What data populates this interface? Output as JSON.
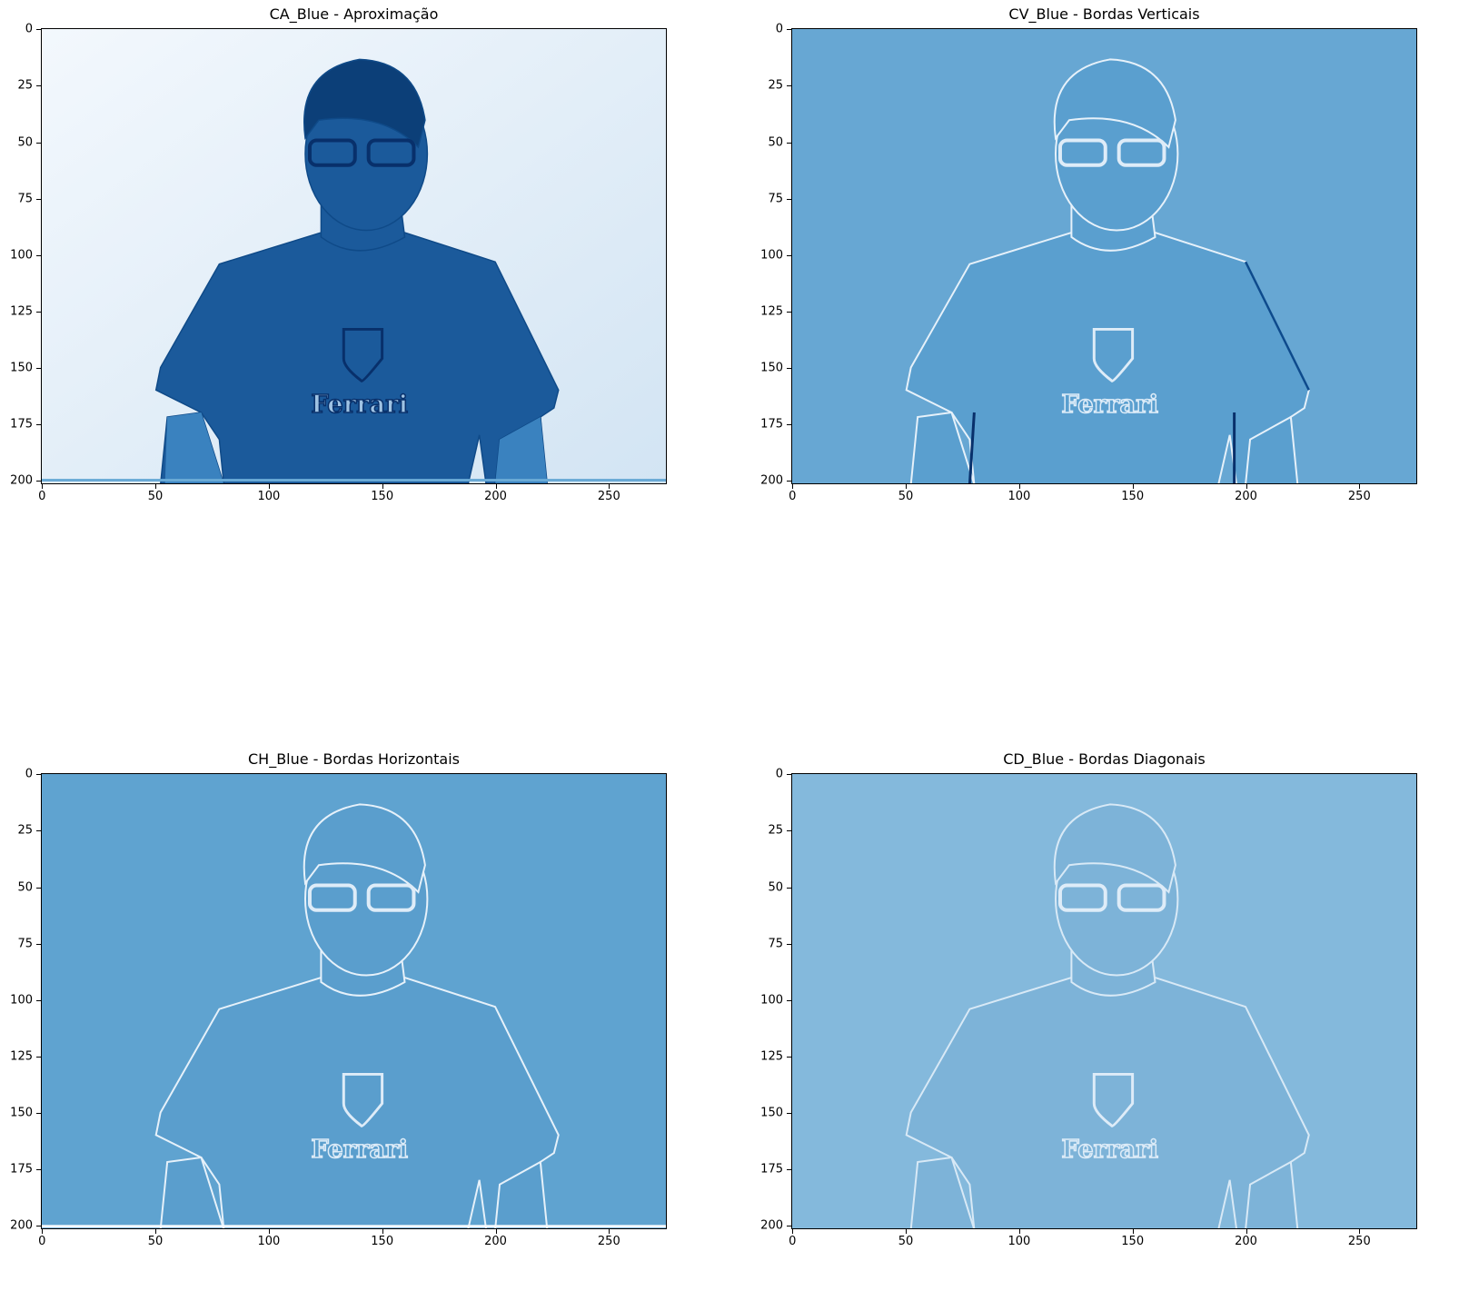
{
  "figure": {
    "panels": [
      {
        "id": "ca",
        "title": "CA_Blue - Aproximação",
        "image": "approximation-coefficients",
        "background": "#e9f2fb",
        "subject_tone": "#1b5a9b"
      },
      {
        "id": "cv",
        "title": "CV_Blue - Bordas Verticais",
        "image": "vertical-edge-coefficients",
        "background": "#67a7d3",
        "subject_tone": "#5a9fcf"
      },
      {
        "id": "ch",
        "title": "CH_Blue - Bordas Horizontais",
        "image": "horizontal-edge-coefficients",
        "background": "#5fa3d0",
        "subject_tone": "#5a9ecd"
      },
      {
        "id": "cd",
        "title": "CD_Blue - Bordas Diagonais",
        "image": "diagonal-edge-coefficients",
        "background": "#84b9dc",
        "subject_tone": "#7db3d8"
      }
    ],
    "x_ticks": [
      "0",
      "50",
      "100",
      "150",
      "200",
      "250"
    ],
    "y_ticks": [
      "0",
      "25",
      "50",
      "75",
      "100",
      "125",
      "150",
      "175",
      "200"
    ],
    "x_tick_values": [
      0,
      50,
      100,
      150,
      200,
      250
    ],
    "y_tick_values": [
      0,
      25,
      50,
      75,
      100,
      125,
      150,
      175,
      200
    ],
    "xlim": [
      -0.5,
      275.5
    ],
    "ylim": [
      201.5,
      -0.5
    ],
    "colormap": "Blues",
    "shirt_text": "Ferrari"
  }
}
